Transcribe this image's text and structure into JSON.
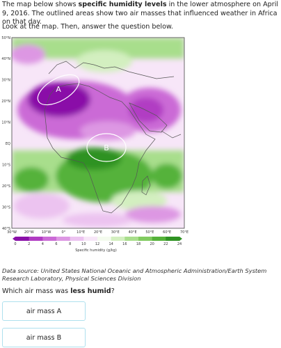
{
  "intro": {
    "part1": "The map below shows ",
    "bold": "specific humidity levels",
    "part2": " in the lower atmosphere on April 9, 2016. The outlined areas show two air masses that influenced weather in Africa on that day."
  },
  "instruction": "Look at the map. Then, answer the question below.",
  "map": {
    "lat_labels": [
      "50°N",
      "40°N",
      "30°N",
      "20°N",
      "10°N",
      "EQ",
      "10°S",
      "20°S",
      "30°S",
      "40°S"
    ],
    "lon_labels": [
      "30°W",
      "20°W",
      "10°W",
      "0°",
      "10°E",
      "20°E",
      "30°E",
      "40°E",
      "50°E",
      "60°E",
      "70°E"
    ],
    "air_mass_a_label": "A",
    "air_mass_b_label": "B",
    "colorbar_ticks": [
      "0",
      "2",
      "4",
      "6",
      "8",
      "10",
      "12",
      "14",
      "16",
      "18",
      "20",
      "22",
      "24"
    ],
    "colorbar_title": "Specific humidity (g/kg)",
    "colorbar_colors": [
      "#8a10a8",
      "#b13cc3",
      "#cb6bd6",
      "#dd97e3",
      "#ecc3f0",
      "#f7e6f8",
      "#f4fbee",
      "#d3efc0",
      "#a8de8c",
      "#80cb5f",
      "#55b23a",
      "#2f9223"
    ]
  },
  "source": "Data source: United States National Oceanic and Atmospheric Administration/Earth System Research Laboratory, Physical Sciences Division",
  "question": {
    "part1": "Which air mass was ",
    "bold": "less humid",
    "part2": "?"
  },
  "choices": [
    {
      "label": "air mass A"
    },
    {
      "label": "air mass B"
    }
  ]
}
